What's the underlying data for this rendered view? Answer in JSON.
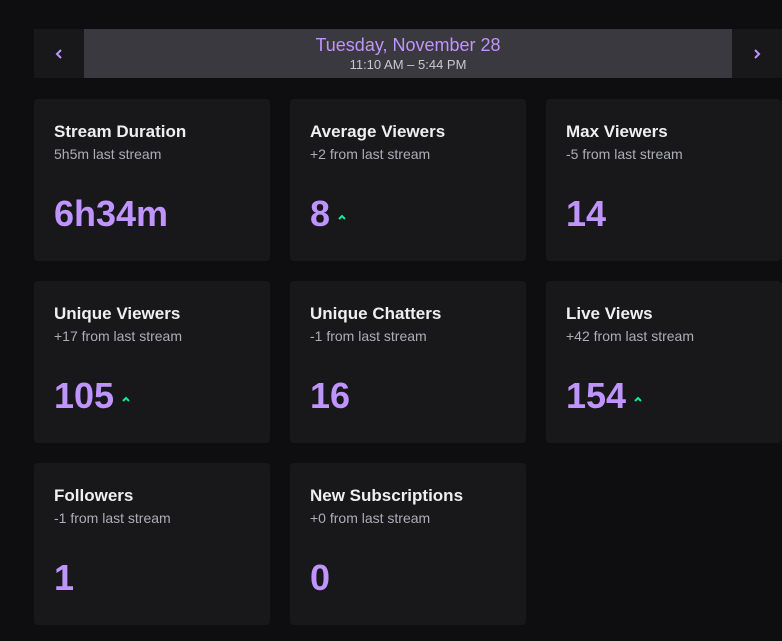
{
  "date_bar": {
    "date": "Tuesday, November 28",
    "time_range": "11:10 AM – 5:44 PM",
    "prev_icon": "chevron-left-icon",
    "next_icon": "chevron-right-icon"
  },
  "colors": {
    "accent": "#bf94ff",
    "up": "#00f593",
    "card_bg": "#18181b",
    "page_bg": "#0e0e10"
  },
  "stats": [
    {
      "title": "Stream Duration",
      "sub": "5h5m last stream",
      "value": "6h34m",
      "trend": "none"
    },
    {
      "title": "Average Viewers",
      "sub": "+2 from last stream",
      "value": "8",
      "trend": "up"
    },
    {
      "title": "Max Viewers",
      "sub": "-5 from last stream",
      "value": "14",
      "trend": "none"
    },
    {
      "title": "Unique Viewers",
      "sub": "+17 from last stream",
      "value": "105",
      "trend": "up"
    },
    {
      "title": "Unique Chatters",
      "sub": "-1 from last stream",
      "value": "16",
      "trend": "none"
    },
    {
      "title": "Live Views",
      "sub": "+42 from last stream",
      "value": "154",
      "trend": "up"
    },
    {
      "title": "Followers",
      "sub": "-1 from last stream",
      "value": "1",
      "trend": "none"
    },
    {
      "title": "New Subscriptions",
      "sub": "+0 from last stream",
      "value": "0",
      "trend": "none"
    }
  ]
}
